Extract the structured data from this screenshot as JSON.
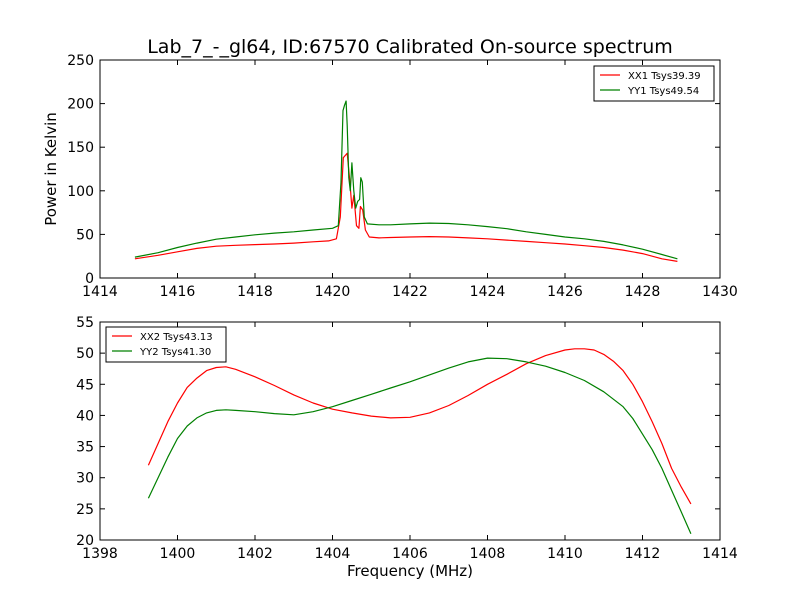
{
  "figure": {
    "title": "Lab_7_-_gl64, ID:67570 Calibrated On-source spectrum"
  },
  "chart_data": [
    {
      "type": "line",
      "title": "",
      "xlabel": "",
      "ylabel": "Power in Kelvin",
      "xlim": [
        1414,
        1430
      ],
      "ylim": [
        0,
        250
      ],
      "xticks": [
        1414,
        1416,
        1418,
        1420,
        1422,
        1424,
        1426,
        1428,
        1430
      ],
      "yticks": [
        0,
        50,
        100,
        150,
        200,
        250
      ],
      "grid": false,
      "legend_position": "top-right",
      "series": [
        {
          "name": "XX1 Tsys39.39",
          "color": "#ff0000",
          "points": [
            [
              1414.9,
              22
            ],
            [
              1415.5,
              26
            ],
            [
              1416.0,
              30
            ],
            [
              1416.5,
              34
            ],
            [
              1417.0,
              36.5
            ],
            [
              1417.5,
              37.5
            ],
            [
              1418.0,
              38.3
            ],
            [
              1418.5,
              39
            ],
            [
              1419.0,
              40
            ],
            [
              1419.5,
              41.5
            ],
            [
              1419.9,
              42.5
            ],
            [
              1420.1,
              45
            ],
            [
              1420.2,
              70
            ],
            [
              1420.28,
              138
            ],
            [
              1420.32,
              140
            ],
            [
              1420.38,
              143
            ],
            [
              1420.45,
              110
            ],
            [
              1420.5,
              80
            ],
            [
              1420.55,
              95
            ],
            [
              1420.62,
              60
            ],
            [
              1420.68,
              57
            ],
            [
              1420.72,
              82
            ],
            [
              1420.78,
              78
            ],
            [
              1420.85,
              55
            ],
            [
              1420.95,
              47
            ],
            [
              1421.2,
              46
            ],
            [
              1421.5,
              46.5
            ],
            [
              1422.0,
              47
            ],
            [
              1422.5,
              47.5
            ],
            [
              1423.0,
              47
            ],
            [
              1423.5,
              46
            ],
            [
              1424.0,
              45
            ],
            [
              1424.5,
              43.5
            ],
            [
              1425.0,
              42
            ],
            [
              1425.5,
              40.5
            ],
            [
              1426.0,
              39
            ],
            [
              1426.5,
              37
            ],
            [
              1427.0,
              35
            ],
            [
              1427.5,
              32
            ],
            [
              1428.0,
              28
            ],
            [
              1428.5,
              22
            ],
            [
              1428.9,
              19
            ]
          ]
        },
        {
          "name": "YY1 Tsys49.54",
          "color": "#008000",
          "points": [
            [
              1414.9,
              24
            ],
            [
              1415.5,
              29
            ],
            [
              1416.0,
              35
            ],
            [
              1416.5,
              40
            ],
            [
              1417.0,
              44.5
            ],
            [
              1417.5,
              47
            ],
            [
              1418.0,
              49.5
            ],
            [
              1418.5,
              51.5
            ],
            [
              1419.0,
              53
            ],
            [
              1419.5,
              55
            ],
            [
              1420.0,
              57
            ],
            [
              1420.15,
              60
            ],
            [
              1420.22,
              110
            ],
            [
              1420.27,
              192
            ],
            [
              1420.31,
              198
            ],
            [
              1420.35,
              203
            ],
            [
              1420.38,
              175
            ],
            [
              1420.42,
              115
            ],
            [
              1420.46,
              100
            ],
            [
              1420.5,
              132
            ],
            [
              1420.55,
              100
            ],
            [
              1420.6,
              80
            ],
            [
              1420.65,
              88
            ],
            [
              1420.7,
              90
            ],
            [
              1420.73,
              115
            ],
            [
              1420.77,
              110
            ],
            [
              1420.82,
              70
            ],
            [
              1420.9,
              62
            ],
            [
              1421.2,
              61
            ],
            [
              1421.5,
              61
            ],
            [
              1422.0,
              62
            ],
            [
              1422.5,
              63
            ],
            [
              1423.0,
              62.5
            ],
            [
              1423.5,
              61
            ],
            [
              1424.0,
              59
            ],
            [
              1424.5,
              56.5
            ],
            [
              1425.0,
              53
            ],
            [
              1425.5,
              50
            ],
            [
              1426.0,
              47
            ],
            [
              1426.5,
              45
            ],
            [
              1427.0,
              42
            ],
            [
              1427.5,
              38
            ],
            [
              1428.0,
              33
            ],
            [
              1428.5,
              27
            ],
            [
              1428.9,
              22
            ]
          ]
        }
      ]
    },
    {
      "type": "line",
      "title": "",
      "xlabel": "Frequency (MHz)",
      "ylabel": "",
      "xlim": [
        1398,
        1414
      ],
      "ylim": [
        20,
        55
      ],
      "xticks": [
        1398,
        1400,
        1402,
        1404,
        1406,
        1408,
        1410,
        1412,
        1414
      ],
      "yticks": [
        20,
        25,
        30,
        35,
        40,
        45,
        50,
        55
      ],
      "grid": false,
      "legend_position": "top-left",
      "series": [
        {
          "name": "XX2 Tsys43.13",
          "color": "#ff0000",
          "points": [
            [
              1399.25,
              32
            ],
            [
              1399.5,
              35.5
            ],
            [
              1399.75,
              39
            ],
            [
              1400.0,
              42
            ],
            [
              1400.25,
              44.5
            ],
            [
              1400.5,
              46
            ],
            [
              1400.75,
              47.2
            ],
            [
              1401.0,
              47.7
            ],
            [
              1401.25,
              47.8
            ],
            [
              1401.5,
              47.4
            ],
            [
              1401.75,
              46.8
            ],
            [
              1402.0,
              46.2
            ],
            [
              1402.5,
              44.8
            ],
            [
              1403.0,
              43.3
            ],
            [
              1403.5,
              42
            ],
            [
              1404.0,
              41
            ],
            [
              1404.5,
              40.4
            ],
            [
              1405.0,
              39.9
            ],
            [
              1405.5,
              39.6
            ],
            [
              1406.0,
              39.7
            ],
            [
              1406.5,
              40.4
            ],
            [
              1407.0,
              41.6
            ],
            [
              1407.5,
              43.2
            ],
            [
              1408.0,
              45
            ],
            [
              1408.5,
              46.6
            ],
            [
              1409.0,
              48.3
            ],
            [
              1409.5,
              49.6
            ],
            [
              1410.0,
              50.5
            ],
            [
              1410.25,
              50.7
            ],
            [
              1410.5,
              50.7
            ],
            [
              1410.75,
              50.5
            ],
            [
              1411.0,
              49.8
            ],
            [
              1411.25,
              48.7
            ],
            [
              1411.5,
              47.2
            ],
            [
              1411.75,
              45
            ],
            [
              1412.0,
              42.2
            ],
            [
              1412.25,
              39
            ],
            [
              1412.5,
              35.5
            ],
            [
              1412.75,
              31.5
            ],
            [
              1413.0,
              28.5
            ],
            [
              1413.25,
              25.8
            ]
          ]
        },
        {
          "name": "YY2 Tsys41.30",
          "color": "#008000",
          "points": [
            [
              1399.25,
              26.7
            ],
            [
              1399.5,
              30
            ],
            [
              1399.75,
              33.3
            ],
            [
              1400.0,
              36.3
            ],
            [
              1400.25,
              38.3
            ],
            [
              1400.5,
              39.6
            ],
            [
              1400.75,
              40.4
            ],
            [
              1401.0,
              40.8
            ],
            [
              1401.25,
              40.9
            ],
            [
              1401.5,
              40.8
            ],
            [
              1402.0,
              40.6
            ],
            [
              1402.5,
              40.3
            ],
            [
              1403.0,
              40.1
            ],
            [
              1403.5,
              40.6
            ],
            [
              1404.0,
              41.4
            ],
            [
              1404.5,
              42.4
            ],
            [
              1405.0,
              43.4
            ],
            [
              1405.5,
              44.4
            ],
            [
              1406.0,
              45.4
            ],
            [
              1406.5,
              46.5
            ],
            [
              1407.0,
              47.6
            ],
            [
              1407.5,
              48.6
            ],
            [
              1408.0,
              49.2
            ],
            [
              1408.5,
              49.1
            ],
            [
              1409.0,
              48.6
            ],
            [
              1409.5,
              47.9
            ],
            [
              1410.0,
              46.9
            ],
            [
              1410.5,
              45.6
            ],
            [
              1411.0,
              43.8
            ],
            [
              1411.5,
              41.4
            ],
            [
              1411.75,
              39.5
            ],
            [
              1412.0,
              37
            ],
            [
              1412.25,
              34.5
            ],
            [
              1412.5,
              31.5
            ],
            [
              1412.75,
              28
            ],
            [
              1413.0,
              24.5
            ],
            [
              1413.25,
              21
            ]
          ]
        }
      ]
    }
  ]
}
